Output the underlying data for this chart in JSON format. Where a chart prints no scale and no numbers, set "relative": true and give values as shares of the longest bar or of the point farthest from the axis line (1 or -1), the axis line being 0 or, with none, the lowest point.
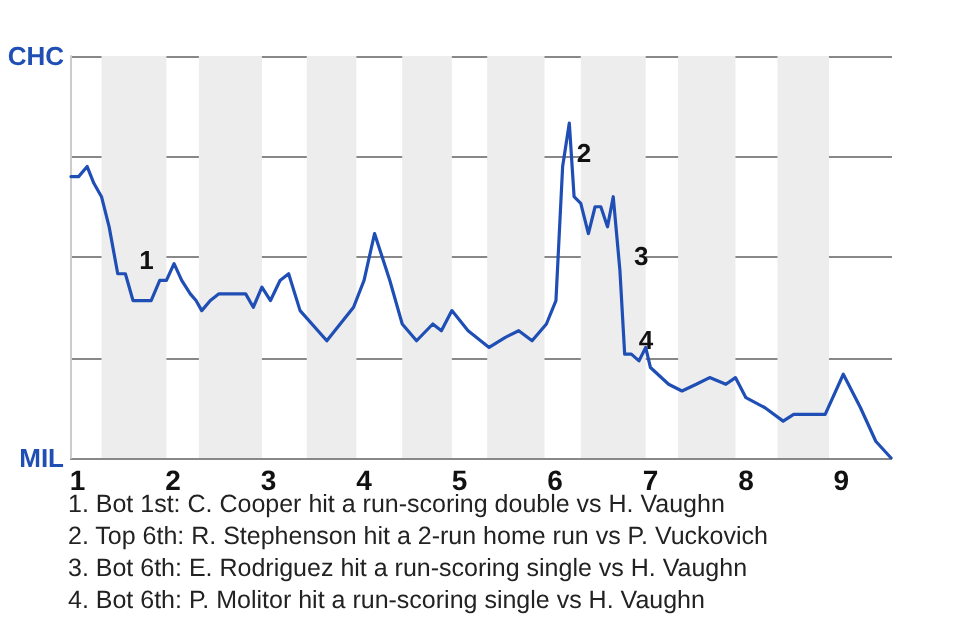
{
  "chart_data": {
    "type": "line",
    "relative": true,
    "xlim": [
      0.92,
      9.53
    ],
    "xticks": [
      1,
      2,
      3,
      4,
      5,
      6,
      7,
      8,
      9
    ],
    "grid": "y",
    "marker": "none",
    "line_style": "solid",
    "series": [
      {
        "color": "#1f4fb5",
        "x": [
          0.93,
          1.01,
          1.1,
          1.17,
          1.25,
          1.33,
          1.42,
          1.5,
          1.58,
          1.77,
          1.86,
          1.93,
          2.01,
          2.09,
          2.18,
          2.24,
          2.3,
          2.39,
          2.48,
          2.58,
          2.76,
          2.84,
          2.93,
          3.02,
          3.12,
          3.21,
          3.33,
          3.61,
          3.89,
          4.0,
          4.11,
          4.27,
          4.4,
          4.55,
          4.72,
          4.81,
          4.92,
          5.09,
          5.31,
          5.48,
          5.62,
          5.76,
          5.91,
          6.01,
          6.08,
          6.15,
          6.2,
          6.27,
          6.35,
          6.42,
          6.48,
          6.55,
          6.61,
          6.68,
          6.73,
          6.8,
          6.88,
          6.95,
          7.0,
          7.19,
          7.33,
          7.48,
          7.62,
          7.79,
          7.89,
          8.0,
          8.2,
          8.39,
          8.5,
          8.83,
          9.02,
          9.2,
          9.36,
          9.52
        ],
        "values": [
          0.84,
          0.84,
          0.87,
          0.82,
          0.78,
          0.69,
          0.55,
          0.55,
          0.47,
          0.47,
          0.53,
          0.53,
          0.58,
          0.53,
          0.49,
          0.47,
          0.44,
          0.47,
          0.49,
          0.49,
          0.49,
          0.45,
          0.51,
          0.47,
          0.53,
          0.55,
          0.44,
          0.35,
          0.45,
          0.53,
          0.67,
          0.53,
          0.4,
          0.35,
          0.4,
          0.38,
          0.44,
          0.38,
          0.33,
          0.36,
          0.38,
          0.35,
          0.4,
          0.47,
          0.87,
          1,
          0.78,
          0.76,
          0.67,
          0.75,
          0.75,
          0.69,
          0.78,
          0.56,
          0.31,
          0.31,
          0.29,
          0.33,
          0.27,
          0.22,
          0.2,
          0.22,
          0.24,
          0.22,
          0.24,
          0.18,
          0.15,
          0.11,
          0.13,
          0.13,
          0.25,
          0.15,
          0.05,
          0
        ]
      }
    ],
    "bands": [
      {
        "axis": "x",
        "from": 1.25,
        "to": 1.93,
        "color": "#ededed"
      },
      {
        "axis": "x",
        "from": 2.27,
        "to": 2.93,
        "color": "#ededed"
      },
      {
        "axis": "x",
        "from": 3.4,
        "to": 3.92,
        "color": "#ededed"
      },
      {
        "axis": "x",
        "from": 4.4,
        "to": 4.92,
        "color": "#ededed"
      },
      {
        "axis": "x",
        "from": 5.29,
        "to": 5.89,
        "color": "#ededed"
      },
      {
        "axis": "x",
        "from": 6.27,
        "to": 6.95,
        "color": "#ededed"
      },
      {
        "axis": "x",
        "from": 7.29,
        "to": 7.89,
        "color": "#ededed"
      },
      {
        "axis": "x",
        "from": 8.33,
        "to": 8.87,
        "color": "#ededed"
      }
    ],
    "annotations": [
      {
        "text": "1",
        "x": 1.5,
        "y": 0.55
      },
      {
        "text": "2",
        "x": 6.08,
        "y": 0.87
      },
      {
        "text": "3",
        "x": 6.68,
        "y": 0.56
      },
      {
        "text": "4",
        "x": 6.73,
        "y": 0.31
      },
      "CHC",
      "MIL",
      "1. Bot 1st: C. Cooper hit a run-scoring double vs H. Vaughn",
      "2. Top 6th: R. Stephenson hit a 2-run home run vs P. Vuckovich",
      "3. Bot 6th: E. Rodriguez hit a run-scoring single vs H. Vaughn",
      "4. Bot 6th: P. Molitor hit a run-scoring single vs H. Vaughn"
    ]
  }
}
